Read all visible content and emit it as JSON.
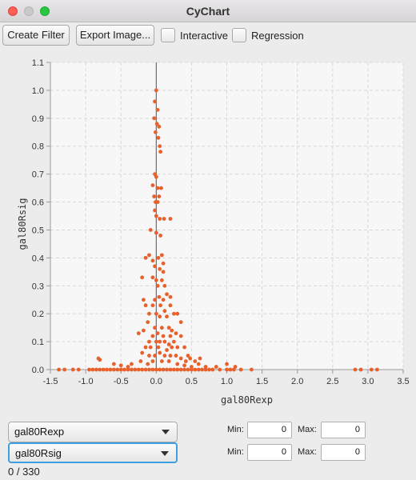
{
  "window": {
    "title": "CyChart"
  },
  "toolbar": {
    "create_filter_label": "Create Filter",
    "export_image_label": "Export Image...",
    "interactive_label": "Interactive",
    "interactive_checked": false,
    "regression_label": "Regression",
    "regression_checked": false
  },
  "chart_data": {
    "type": "scatter",
    "xlabel": "gal80Rexp",
    "ylabel": "gal80Rsig",
    "xlim": [
      -1.5,
      3.5
    ],
    "ylim": [
      0.0,
      1.1
    ],
    "xticks": [
      "-1.5",
      "-1.0",
      "-0.5",
      "0.0",
      "0.5",
      "1.0",
      "1.5",
      "2.0",
      "2.5",
      "3.0",
      "3.5"
    ],
    "yticks": [
      "0.0",
      "0.1",
      "0.2",
      "0.3",
      "0.4",
      "0.5",
      "0.6",
      "0.7",
      "0.8",
      "0.9",
      "1.0",
      "1.1"
    ],
    "grid": true,
    "point_color": "#e8602c",
    "points": [
      [
        0.0,
        1.0
      ],
      [
        -0.02,
        0.96
      ],
      [
        0.02,
        0.93
      ],
      [
        -0.03,
        0.9
      ],
      [
        0.01,
        0.88
      ],
      [
        0.04,
        0.87
      ],
      [
        -0.01,
        0.85
      ],
      [
        0.03,
        0.83
      ],
      [
        0.05,
        0.8
      ],
      [
        0.06,
        0.78
      ],
      [
        -0.02,
        0.7
      ],
      [
        0.0,
        0.69
      ],
      [
        -0.05,
        0.66
      ],
      [
        0.02,
        0.65
      ],
      [
        0.07,
        0.65
      ],
      [
        -0.03,
        0.62
      ],
      [
        0.04,
        0.62
      ],
      [
        -0.01,
        0.6
      ],
      [
        0.02,
        0.6
      ],
      [
        -0.02,
        0.57
      ],
      [
        0.0,
        0.55
      ],
      [
        0.05,
        0.54
      ],
      [
        0.11,
        0.54
      ],
      [
        0.2,
        0.54
      ],
      [
        -0.08,
        0.5
      ],
      [
        0.0,
        0.49
      ],
      [
        0.06,
        0.48
      ],
      [
        -0.15,
        0.4
      ],
      [
        -0.1,
        0.41
      ],
      [
        -0.05,
        0.39
      ],
      [
        0.03,
        0.4
      ],
      [
        0.08,
        0.41
      ],
      [
        0.1,
        0.38
      ],
      [
        -0.02,
        0.37
      ],
      [
        0.05,
        0.36
      ],
      [
        0.1,
        0.35
      ],
      [
        -0.2,
        0.33
      ],
      [
        -0.05,
        0.33
      ],
      [
        0.0,
        0.32
      ],
      [
        0.08,
        0.32
      ],
      [
        0.02,
        0.3
      ],
      [
        0.12,
        0.3
      ],
      [
        -0.18,
        0.25
      ],
      [
        -0.02,
        0.25
      ],
      [
        0.04,
        0.26
      ],
      [
        0.1,
        0.25
      ],
      [
        0.15,
        0.27
      ],
      [
        0.2,
        0.26
      ],
      [
        -0.15,
        0.23
      ],
      [
        -0.05,
        0.23
      ],
      [
        0.06,
        0.23
      ],
      [
        0.12,
        0.21
      ],
      [
        0.2,
        0.23
      ],
      [
        -0.1,
        0.2
      ],
      [
        0.0,
        0.2
      ],
      [
        0.05,
        0.19
      ],
      [
        0.15,
        0.19
      ],
      [
        0.25,
        0.2
      ],
      [
        0.3,
        0.2
      ],
      [
        0.35,
        0.17
      ],
      [
        -0.12,
        0.17
      ],
      [
        -0.02,
        0.15
      ],
      [
        0.08,
        0.15
      ],
      [
        0.18,
        0.15
      ],
      [
        0.22,
        0.14
      ],
      [
        -0.25,
        0.13
      ],
      [
        -0.18,
        0.14
      ],
      [
        -0.05,
        0.12
      ],
      [
        0.02,
        0.13
      ],
      [
        0.1,
        0.12
      ],
      [
        0.2,
        0.12
      ],
      [
        0.28,
        0.13
      ],
      [
        0.35,
        0.12
      ],
      [
        -0.1,
        0.1
      ],
      [
        0.0,
        0.1
      ],
      [
        0.05,
        0.1
      ],
      [
        0.12,
        0.1
      ],
      [
        0.18,
        0.09
      ],
      [
        0.25,
        0.1
      ],
      [
        -0.15,
        0.08
      ],
      [
        -0.08,
        0.08
      ],
      [
        0.03,
        0.08
      ],
      [
        0.15,
        0.07
      ],
      [
        0.22,
        0.08
      ],
      [
        0.3,
        0.08
      ],
      [
        0.4,
        0.08
      ],
      [
        0.45,
        0.05
      ],
      [
        -0.2,
        0.06
      ],
      [
        -0.1,
        0.05
      ],
      [
        -0.02,
        0.05
      ],
      [
        0.05,
        0.06
      ],
      [
        0.12,
        0.05
      ],
      [
        0.2,
        0.05
      ],
      [
        0.28,
        0.05
      ],
      [
        0.35,
        0.04
      ],
      [
        0.48,
        0.04
      ],
      [
        -0.22,
        0.03
      ],
      [
        -0.12,
        0.02
      ],
      [
        -0.05,
        0.03
      ],
      [
        0.08,
        0.03
      ],
      [
        0.18,
        0.03
      ],
      [
        0.3,
        0.02
      ],
      [
        0.42,
        0.03
      ],
      [
        0.55,
        0.03
      ],
      [
        -0.82,
        0.04
      ],
      [
        -0.8,
        0.035
      ],
      [
        -0.6,
        0.02
      ],
      [
        -0.35,
        0.02
      ],
      [
        -1.38,
        0.0
      ],
      [
        -1.3,
        0.0
      ],
      [
        -1.18,
        0.0
      ],
      [
        -1.1,
        0.0
      ],
      [
        -0.95,
        0.0
      ],
      [
        -0.9,
        0.0
      ],
      [
        -0.85,
        0.0
      ],
      [
        -0.8,
        0.0
      ],
      [
        -0.75,
        0.0
      ],
      [
        -0.7,
        0.0
      ],
      [
        -0.65,
        0.0
      ],
      [
        -0.6,
        0.0
      ],
      [
        -0.55,
        0.0
      ],
      [
        -0.5,
        0.0
      ],
      [
        -0.45,
        0.0
      ],
      [
        -0.4,
        0.0
      ],
      [
        -0.35,
        0.0
      ],
      [
        -0.3,
        0.0
      ],
      [
        -0.25,
        0.0
      ],
      [
        -0.2,
        0.0
      ],
      [
        -0.15,
        0.0
      ],
      [
        -0.1,
        0.0
      ],
      [
        -0.05,
        0.0
      ],
      [
        0.0,
        0.0
      ],
      [
        0.05,
        0.0
      ],
      [
        0.1,
        0.0
      ],
      [
        0.15,
        0.0
      ],
      [
        0.2,
        0.0
      ],
      [
        0.25,
        0.0
      ],
      [
        0.3,
        0.0
      ],
      [
        0.35,
        0.0
      ],
      [
        0.4,
        0.0
      ],
      [
        0.45,
        0.0
      ],
      [
        0.5,
        0.0
      ],
      [
        0.55,
        0.0
      ],
      [
        0.6,
        0.0
      ],
      [
        0.65,
        0.0
      ],
      [
        0.7,
        0.0
      ],
      [
        0.75,
        0.0
      ],
      [
        0.8,
        0.0
      ],
      [
        0.9,
        0.0
      ],
      [
        1.0,
        0.0
      ],
      [
        1.05,
        0.0
      ],
      [
        1.1,
        0.0
      ],
      [
        1.2,
        0.0
      ],
      [
        1.35,
        0.0
      ],
      [
        2.82,
        0.0
      ],
      [
        2.9,
        0.0
      ],
      [
        3.05,
        0.0
      ],
      [
        3.13,
        0.0
      ],
      [
        0.6,
        0.02
      ],
      [
        0.7,
        0.01
      ],
      [
        0.85,
        0.01
      ],
      [
        1.0,
        0.02
      ],
      [
        1.12,
        0.01
      ],
      [
        0.5,
        0.01
      ],
      [
        0.4,
        0.015
      ],
      [
        0.62,
        0.04
      ],
      [
        -0.4,
        0.01
      ],
      [
        -0.5,
        0.015
      ]
    ]
  },
  "selectors": {
    "x_column": "gal80Rexp",
    "y_column": "gal80Rsig"
  },
  "ranges": {
    "min_label": "Min:",
    "max_label": "Max:",
    "x_min": "0",
    "x_max": "0",
    "y_min": "0",
    "y_max": "0"
  },
  "status": {
    "selection_count": "0 / 330"
  }
}
